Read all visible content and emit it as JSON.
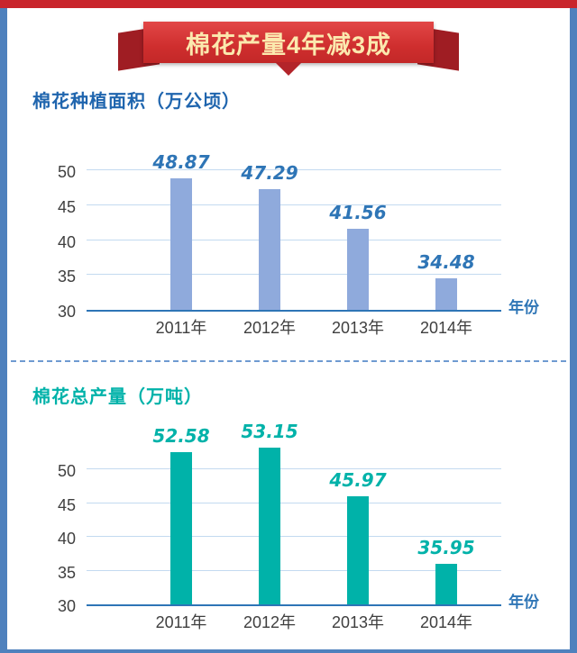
{
  "banner": {
    "title": "棉花产量4年减3成"
  },
  "frame_colors": {
    "side_strip": "#4f81bd",
    "top_strip": "#c9252c",
    "ribbon_red": "#cf2e2e",
    "ribbon_text": "#fbe9ae"
  },
  "chart_data": [
    {
      "type": "bar",
      "title": "棉花种植面积（万公顷）",
      "categories": [
        "2011年",
        "2012年",
        "2013年",
        "2014年"
      ],
      "values": [
        48.87,
        47.29,
        41.56,
        34.48
      ],
      "xlabel": "年份",
      "ylabel": "",
      "yticks": [
        30,
        35,
        40,
        45,
        50
      ],
      "ylim": [
        30,
        50
      ],
      "grid": true,
      "legend": "none",
      "bar_color": "#8faadc",
      "label_color": "#2e75b6",
      "title_color": "#1f65ae"
    },
    {
      "type": "bar",
      "title": "棉花总产量（万吨）",
      "categories": [
        "2011年",
        "2012年",
        "2013年",
        "2014年"
      ],
      "values": [
        52.58,
        53.15,
        45.97,
        35.95
      ],
      "xlabel": "年份",
      "ylabel": "",
      "yticks": [
        30,
        35,
        40,
        45,
        50
      ],
      "ylim": [
        30,
        50
      ],
      "grid": true,
      "legend": "none",
      "bar_color": "#00b2a9",
      "label_color": "#00b2a9",
      "title_color": "#00b2a9"
    }
  ]
}
